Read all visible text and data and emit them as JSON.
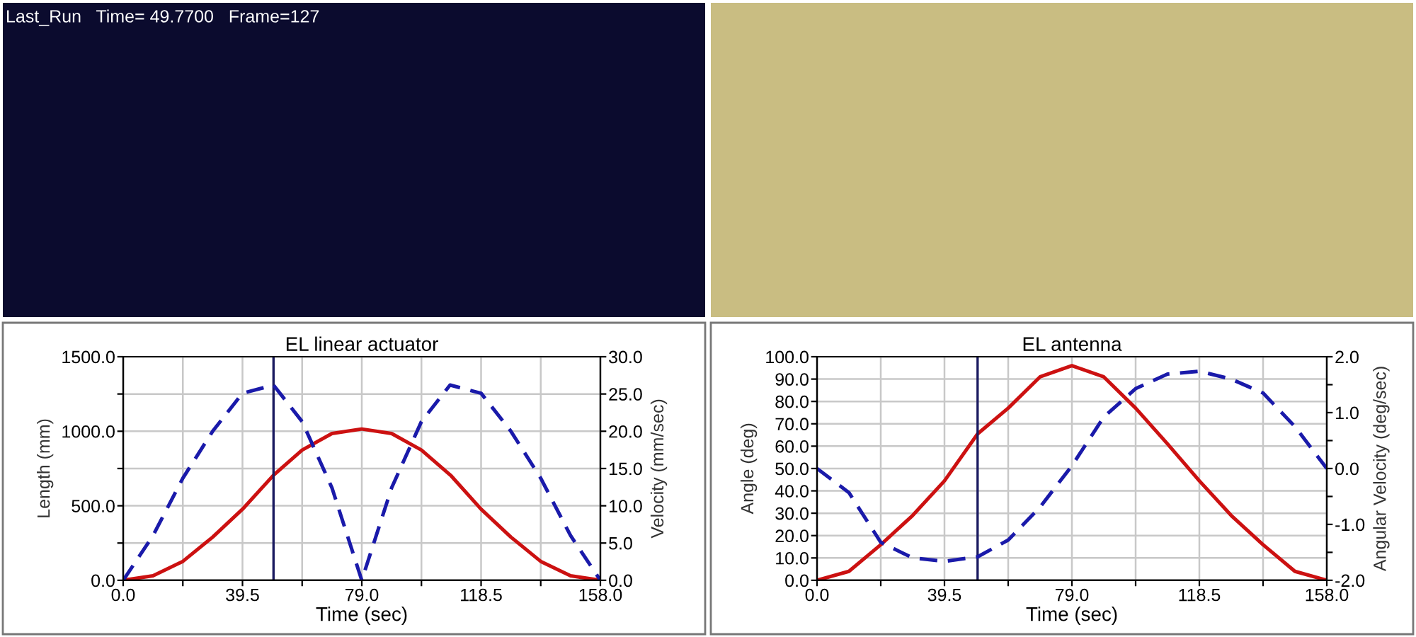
{
  "chart_data": [
    {
      "type": "other",
      "annotations": [
        "Last_Run   Time= 49.7700   Frame=127"
      ]
    },
    {
      "type": "line",
      "title": "EL linear actuator",
      "xlabel": "Time (sec)",
      "ylabel": "Length (mm)",
      "y2label": "Velocity (mm/sec)",
      "xlim": [
        0,
        158
      ],
      "xticks": [
        {
          "value": 0,
          "label": "0.0"
        },
        {
          "value": 19.75,
          "label": null
        },
        {
          "value": 39.5,
          "label": "39.5"
        },
        {
          "value": 59.25,
          "label": null
        },
        {
          "value": 79,
          "label": "79.0"
        },
        {
          "value": 98.75,
          "label": null
        },
        {
          "value": 118.5,
          "label": "118.5"
        },
        {
          "value": 138.25,
          "label": null
        },
        {
          "value": 158,
          "label": "158.0"
        }
      ],
      "ylim": [
        0,
        1500
      ],
      "yticks": [
        {
          "value": 0,
          "label": "0.0"
        },
        {
          "value": 250,
          "label": null
        },
        {
          "value": 500,
          "label": "500.0"
        },
        {
          "value": 750,
          "label": null
        },
        {
          "value": 1000,
          "label": "1000.0"
        },
        {
          "value": 1250,
          "label": null
        },
        {
          "value": 1500,
          "label": "1500.0"
        }
      ],
      "y2lim": [
        0,
        30
      ],
      "y2ticks": [
        {
          "value": 0,
          "label": "0.0"
        },
        {
          "value": 5,
          "label": "5.0"
        },
        {
          "value": 10,
          "label": "10.0"
        },
        {
          "value": 15,
          "label": "15.0"
        },
        {
          "value": 20,
          "label": "20.0"
        },
        {
          "value": 25,
          "label": "25.0"
        },
        {
          "value": 30,
          "label": "30.0"
        }
      ],
      "grid": true,
      "marker": "none",
      "ref_lines": [
        {
          "axis": "x",
          "value": 49.77,
          "color": "#1a1a60"
        }
      ],
      "series": [
        {
          "color": "#cc1111",
          "line_style": "solid",
          "x": [
            0,
            9.875,
            19.75,
            29.625,
            39.5,
            49.77,
            59.25,
            69.125,
            79,
            88.875,
            98.75,
            108.625,
            118.5,
            128.375,
            138.25,
            148.125,
            158
          ],
          "values": [
            0,
            30,
            127,
            290,
            477,
            705,
            874,
            985,
            1015,
            985,
            874,
            700,
            477,
            290,
            127,
            30,
            0
          ]
        },
        {
          "color": "#1a1aaa",
          "line_style": "dashed",
          "axis": "y2",
          "x": [
            0,
            9.875,
            19.75,
            29.625,
            39.5,
            49.77,
            59.25,
            69.125,
            79,
            88.875,
            98.75,
            108.23,
            118.5,
            128.375,
            138.25,
            148.125,
            158
          ],
          "values": [
            0,
            6,
            13.7,
            20,
            25.1,
            26.2,
            21.3,
            12.4,
            0,
            12.4,
            21.3,
            26.2,
            25.1,
            20,
            13.7,
            6,
            0
          ]
        }
      ]
    },
    {
      "type": "line",
      "title": "EL antenna",
      "xlabel": "Time (sec)",
      "ylabel": "Angle (deg)",
      "y2label": "Angular Velocity (deg/sec)",
      "xlim": [
        0,
        158
      ],
      "xticks": [
        {
          "value": 0,
          "label": "0.0"
        },
        {
          "value": 19.75,
          "label": null
        },
        {
          "value": 39.5,
          "label": "39.5"
        },
        {
          "value": 59.25,
          "label": null
        },
        {
          "value": 79,
          "label": "79.0"
        },
        {
          "value": 98.75,
          "label": null
        },
        {
          "value": 118.5,
          "label": "118.5"
        },
        {
          "value": 138.25,
          "label": null
        },
        {
          "value": 158,
          "label": "158.0"
        }
      ],
      "ylim": [
        0,
        100
      ],
      "yticks": [
        {
          "value": 0,
          "label": "0.0"
        },
        {
          "value": 10,
          "label": "10.0"
        },
        {
          "value": 20,
          "label": "20.0"
        },
        {
          "value": 30,
          "label": "30.0"
        },
        {
          "value": 40,
          "label": "40.0"
        },
        {
          "value": 50,
          "label": "50.0"
        },
        {
          "value": 60,
          "label": "60.0"
        },
        {
          "value": 70,
          "label": "70.0"
        },
        {
          "value": 80,
          "label": "80.0"
        },
        {
          "value": 90,
          "label": "90.0"
        },
        {
          "value": 100,
          "label": "100.0"
        }
      ],
      "y2lim": [
        -2,
        2
      ],
      "y2ticks": [
        {
          "value": -2,
          "label": "-2.0"
        },
        {
          "value": -1.5,
          "label": null
        },
        {
          "value": -1,
          "label": "-1.0"
        },
        {
          "value": -0.5,
          "label": null
        },
        {
          "value": 0,
          "label": "0.0"
        },
        {
          "value": 0.5,
          "label": null
        },
        {
          "value": 1,
          "label": "1.0"
        },
        {
          "value": 1.5,
          "label": null
        },
        {
          "value": 2,
          "label": "2.0"
        }
      ],
      "grid": true,
      "marker": "none",
      "ref_lines": [
        {
          "axis": "x",
          "value": 49.77,
          "color": "#1a1a60"
        }
      ],
      "series": [
        {
          "color": "#cc1111",
          "line_style": "solid",
          "x": [
            0,
            9.875,
            19.75,
            29.625,
            39.5,
            49.77,
            59.25,
            69.125,
            79,
            88.875,
            98.75,
            108.625,
            118.5,
            128.375,
            138.25,
            148.125,
            158
          ],
          "values": [
            0,
            4,
            15.9,
            29,
            44.5,
            65.5,
            77,
            91,
            96,
            91,
            77,
            61,
            44.5,
            29,
            15.9,
            4,
            0
          ]
        },
        {
          "color": "#1a1aaa",
          "line_style": "dashed",
          "axis": "y2",
          "x": [
            0,
            9.875,
            19.75,
            29.625,
            39.5,
            49.77,
            59.25,
            69.125,
            79,
            88.875,
            98.75,
            108.625,
            118.5,
            128.375,
            138.25,
            148.125,
            158
          ],
          "values": [
            0,
            -0.43,
            -1.32,
            -1.6,
            -1.66,
            -1.58,
            -1.28,
            -0.69,
            0.05,
            0.92,
            1.43,
            1.69,
            1.74,
            1.6,
            1.35,
            0.75,
            0
          ]
        }
      ]
    }
  ]
}
